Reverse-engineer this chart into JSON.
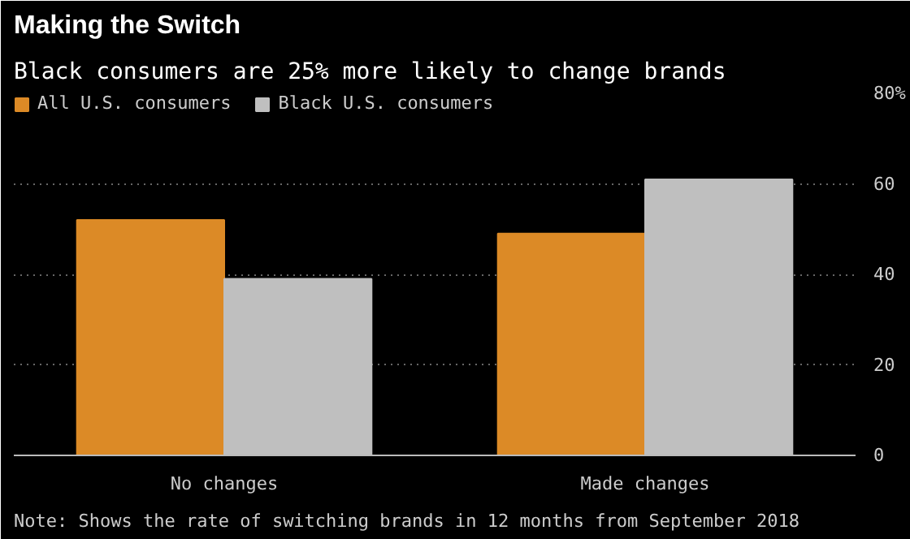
{
  "chart_data": {
    "type": "bar",
    "title": "Making the Switch",
    "subtitle": "Black consumers are 25% more likely to change brands",
    "categories": [
      "No changes",
      "Made changes"
    ],
    "series": [
      {
        "name": "All U.S. consumers",
        "color": "#dc8a26",
        "values": [
          52,
          49
        ]
      },
      {
        "name": "Black U.S. consumers",
        "color": "#bfbfbf",
        "values": [
          39,
          61
        ]
      }
    ],
    "ylim": [
      0,
      80
    ],
    "yticks": [
      0,
      20,
      40,
      60,
      {
        "value": 80,
        "label": "80%"
      }
    ],
    "grid": "y",
    "legend": "top left",
    "annotations": [
      "Note: Shows the rate of switching brands in 12 months from September 2018"
    ]
  }
}
